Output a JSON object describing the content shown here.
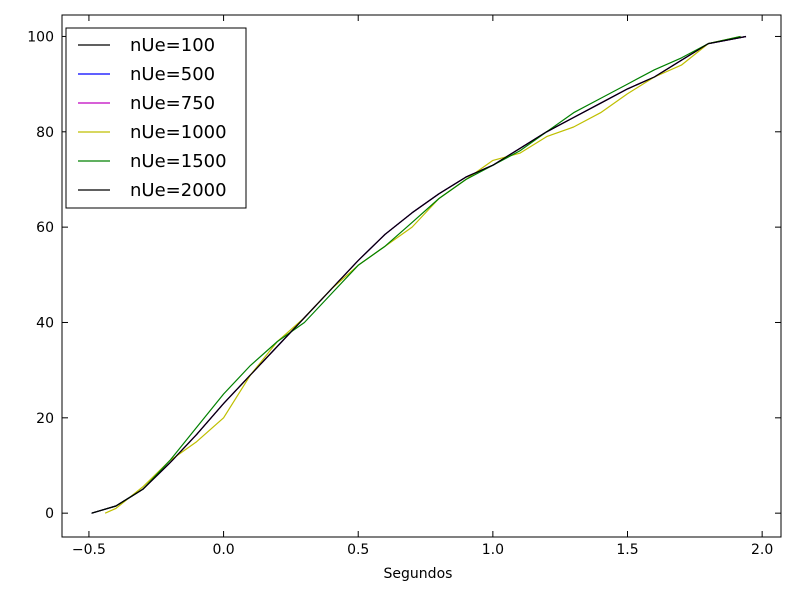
{
  "chart_data": {
    "type": "line",
    "title": "",
    "xlabel": "Segundos",
    "ylabel": "",
    "xlim": [
      -0.6,
      2.07
    ],
    "ylim": [
      -5,
      104.5
    ],
    "xticks": [
      -0.5,
      0.0,
      0.5,
      1.0,
      1.5,
      2.0
    ],
    "xtick_labels": [
      "−0.5",
      "0.0",
      "0.5",
      "1.0",
      "1.5",
      "2.0"
    ],
    "yticks": [
      0,
      20,
      40,
      60,
      80,
      100
    ],
    "ytick_labels": [
      "0",
      "20",
      "40",
      "60",
      "80",
      "100"
    ],
    "grid": false,
    "legend_position": "top-left",
    "series": [
      {
        "name": "nUe=100",
        "color": "#000000",
        "x": [
          -0.49,
          -0.4,
          -0.3,
          -0.2,
          -0.1,
          0.0,
          0.1,
          0.2,
          0.3,
          0.4,
          0.5,
          0.6,
          0.7,
          0.8,
          0.9,
          1.0,
          1.1,
          1.2,
          1.3,
          1.4,
          1.5,
          1.6,
          1.7,
          1.8,
          1.94
        ],
        "y": [
          0,
          1.5,
          5,
          10.5,
          16.5,
          23,
          29,
          35,
          41,
          47,
          53,
          58.5,
          63,
          67,
          70.5,
          73,
          76.5,
          80,
          83,
          86,
          89,
          91.5,
          95,
          98.5,
          100
        ]
      },
      {
        "name": "nUe=500",
        "color": "#0000ff",
        "x": [
          -0.49,
          -0.4,
          -0.3,
          -0.2,
          -0.1,
          0.0,
          0.1,
          0.2,
          0.3,
          0.4,
          0.5,
          0.6,
          0.7,
          0.8,
          0.9,
          1.0,
          1.1,
          1.2,
          1.3,
          1.4,
          1.5,
          1.6,
          1.7,
          1.8,
          1.94
        ],
        "y": [
          0,
          1.5,
          5,
          10.5,
          16.5,
          23,
          29,
          35,
          41,
          47,
          53,
          58.5,
          63,
          67,
          70.5,
          73,
          76.5,
          80,
          83,
          86,
          89,
          91.5,
          95,
          98.5,
          100
        ]
      },
      {
        "name": "nUe=750",
        "color": "#bf00bf",
        "x": [
          -0.49,
          -0.4,
          -0.3,
          -0.2,
          -0.1,
          0.0,
          0.1,
          0.2,
          0.3,
          0.4,
          0.5,
          0.6,
          0.7,
          0.8,
          0.9,
          1.0,
          1.1,
          1.2,
          1.3,
          1.4,
          1.5,
          1.6,
          1.7,
          1.8,
          1.94
        ],
        "y": [
          0,
          1.5,
          5,
          10.5,
          16.5,
          23,
          29,
          35,
          41,
          47,
          53,
          58.5,
          63,
          67,
          70.5,
          73,
          76.5,
          80,
          83,
          86,
          89,
          91.5,
          95,
          98.5,
          100
        ]
      },
      {
        "name": "nUe=1000",
        "color": "#bfbf00",
        "x": [
          -0.44,
          -0.4,
          -0.3,
          -0.2,
          -0.1,
          0.0,
          0.1,
          0.2,
          0.3,
          0.4,
          0.5,
          0.6,
          0.7,
          0.8,
          0.9,
          1.0,
          1.1,
          1.2,
          1.3,
          1.4,
          1.5,
          1.6,
          1.7,
          1.8,
          1.92
        ],
        "y": [
          0,
          1,
          5.5,
          11,
          15,
          20,
          29,
          36,
          41,
          47,
          52,
          56,
          60,
          66,
          70,
          74,
          75.5,
          79,
          81,
          84,
          88,
          91.5,
          94,
          98.5,
          100
        ]
      },
      {
        "name": "nUe=1500",
        "color": "#008000",
        "x": [
          -0.49,
          -0.4,
          -0.3,
          -0.2,
          -0.1,
          0.0,
          0.1,
          0.2,
          0.3,
          0.4,
          0.5,
          0.6,
          0.7,
          0.8,
          0.9,
          1.0,
          1.1,
          1.2,
          1.3,
          1.4,
          1.5,
          1.6,
          1.7,
          1.8,
          1.92
        ],
        "y": [
          0,
          1.5,
          5,
          11,
          18,
          25,
          31,
          36,
          40,
          46,
          52,
          56,
          61,
          66,
          70,
          73,
          76,
          80,
          84,
          87,
          90,
          93,
          95.5,
          98.5,
          100
        ]
      },
      {
        "name": "nUe=2000",
        "color": "#000000",
        "x": [
          -0.49,
          -0.4,
          -0.3,
          -0.2,
          -0.1,
          0.0,
          0.1,
          0.2,
          0.3,
          0.4,
          0.5,
          0.6,
          0.7,
          0.8,
          0.9,
          1.0,
          1.1,
          1.2,
          1.3,
          1.4,
          1.5,
          1.6,
          1.7,
          1.8,
          1.94
        ],
        "y": [
          0,
          1.5,
          5,
          10.5,
          16.5,
          23,
          29,
          35,
          41,
          47,
          53,
          58.5,
          63,
          67,
          70.5,
          73,
          76.5,
          80,
          83,
          86,
          89,
          91.5,
          95,
          98.5,
          100
        ]
      }
    ]
  }
}
